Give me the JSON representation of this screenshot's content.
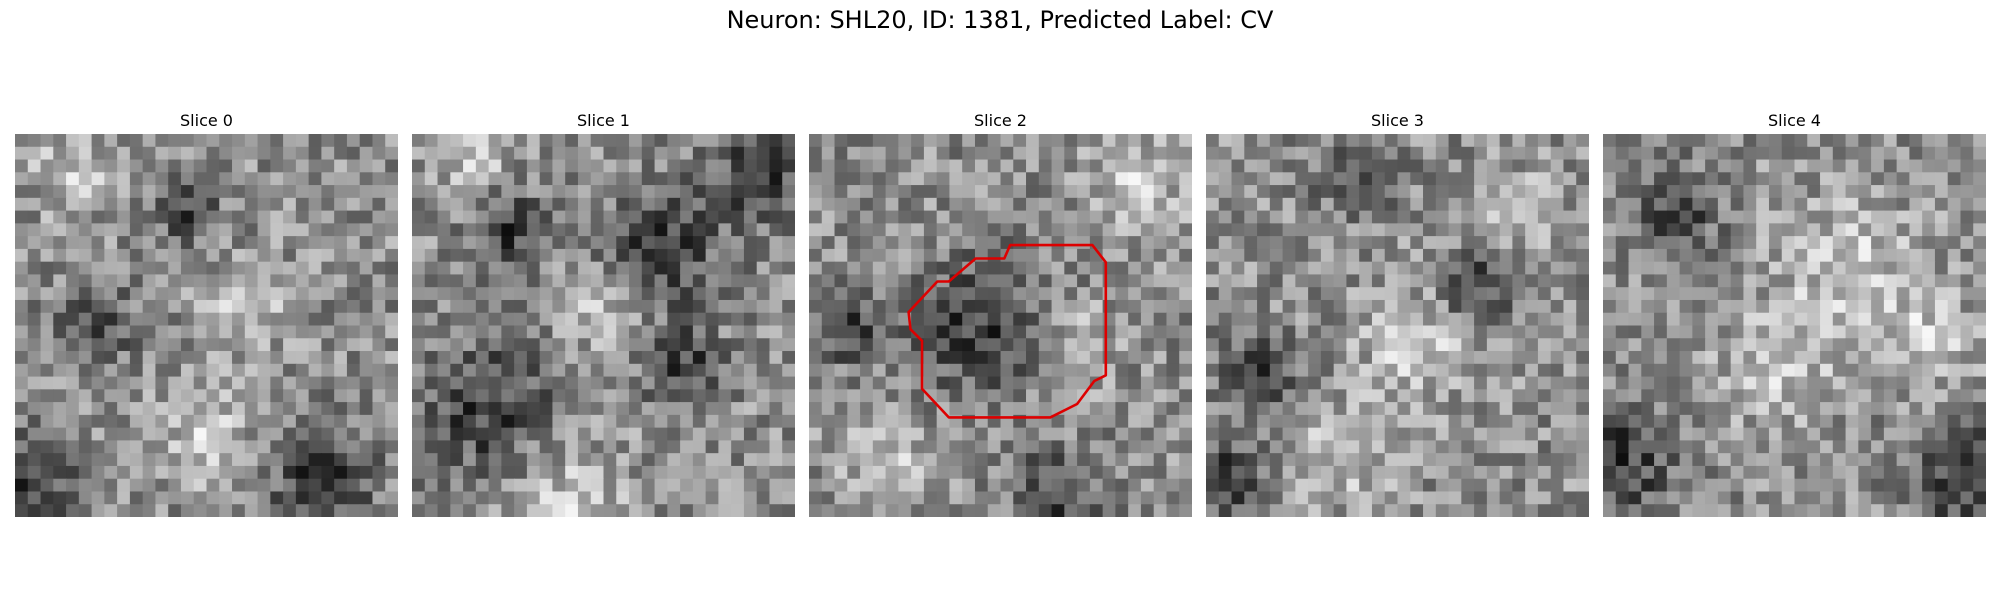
{
  "figure": {
    "title": "Neuron: SHL20, ID: 1381, Predicted Label: CV"
  },
  "panels": [
    {
      "title": "Slice 0",
      "seed": 11,
      "dark_spots": [
        [
          0.05,
          0.9,
          0.12
        ],
        [
          0.8,
          0.9,
          0.14
        ],
        [
          0.2,
          0.5,
          0.1
        ],
        [
          0.45,
          0.2,
          0.08
        ]
      ],
      "bright_spots": [
        [
          0.5,
          0.8,
          0.12
        ],
        [
          0.15,
          0.1,
          0.1
        ],
        [
          0.6,
          0.45,
          0.1
        ]
      ]
    },
    {
      "title": "Slice 1",
      "seed": 23,
      "dark_spots": [
        [
          0.2,
          0.72,
          0.18
        ],
        [
          0.65,
          0.3,
          0.16
        ],
        [
          0.9,
          0.1,
          0.12
        ],
        [
          0.25,
          0.25,
          0.1
        ],
        [
          0.7,
          0.6,
          0.1
        ]
      ],
      "bright_spots": [
        [
          0.4,
          0.95,
          0.15
        ],
        [
          0.5,
          0.45,
          0.12
        ],
        [
          0.15,
          0.05,
          0.1
        ]
      ]
    },
    {
      "title": "Slice 2",
      "seed": 37,
      "dark_spots": [
        [
          0.45,
          0.5,
          0.18
        ],
        [
          0.65,
          0.95,
          0.12
        ],
        [
          0.1,
          0.5,
          0.1
        ]
      ],
      "bright_spots": [
        [
          0.85,
          0.15,
          0.12
        ],
        [
          0.2,
          0.85,
          0.12
        ],
        [
          0.7,
          0.55,
          0.1
        ]
      ]
    },
    {
      "title": "Slice 3",
      "seed": 41,
      "dark_spots": [
        [
          0.15,
          0.62,
          0.1
        ],
        [
          0.05,
          0.9,
          0.12
        ],
        [
          0.4,
          0.1,
          0.1
        ],
        [
          0.7,
          0.4,
          0.1
        ]
      ],
      "bright_spots": [
        [
          0.55,
          0.55,
          0.15
        ],
        [
          0.35,
          0.85,
          0.12
        ],
        [
          0.8,
          0.2,
          0.1
        ]
      ]
    },
    {
      "title": "Slice 4",
      "seed": 53,
      "dark_spots": [
        [
          0.05,
          0.85,
          0.15
        ],
        [
          0.95,
          0.9,
          0.14
        ],
        [
          0.2,
          0.2,
          0.1
        ]
      ],
      "bright_spots": [
        [
          0.65,
          0.35,
          0.18
        ],
        [
          0.45,
          0.6,
          0.15
        ],
        [
          0.85,
          0.55,
          0.12
        ]
      ]
    }
  ],
  "outline": {
    "panel_index": 2,
    "color": "#dd0000",
    "points": [
      [
        0.525,
        0.29
      ],
      [
        0.74,
        0.29
      ],
      [
        0.775,
        0.335
      ],
      [
        0.775,
        0.63
      ],
      [
        0.745,
        0.645
      ],
      [
        0.7,
        0.705
      ],
      [
        0.63,
        0.74
      ],
      [
        0.365,
        0.74
      ],
      [
        0.295,
        0.665
      ],
      [
        0.295,
        0.54
      ],
      [
        0.265,
        0.51
      ],
      [
        0.26,
        0.465
      ],
      [
        0.335,
        0.385
      ],
      [
        0.365,
        0.385
      ],
      [
        0.435,
        0.325
      ],
      [
        0.51,
        0.325
      ]
    ]
  }
}
